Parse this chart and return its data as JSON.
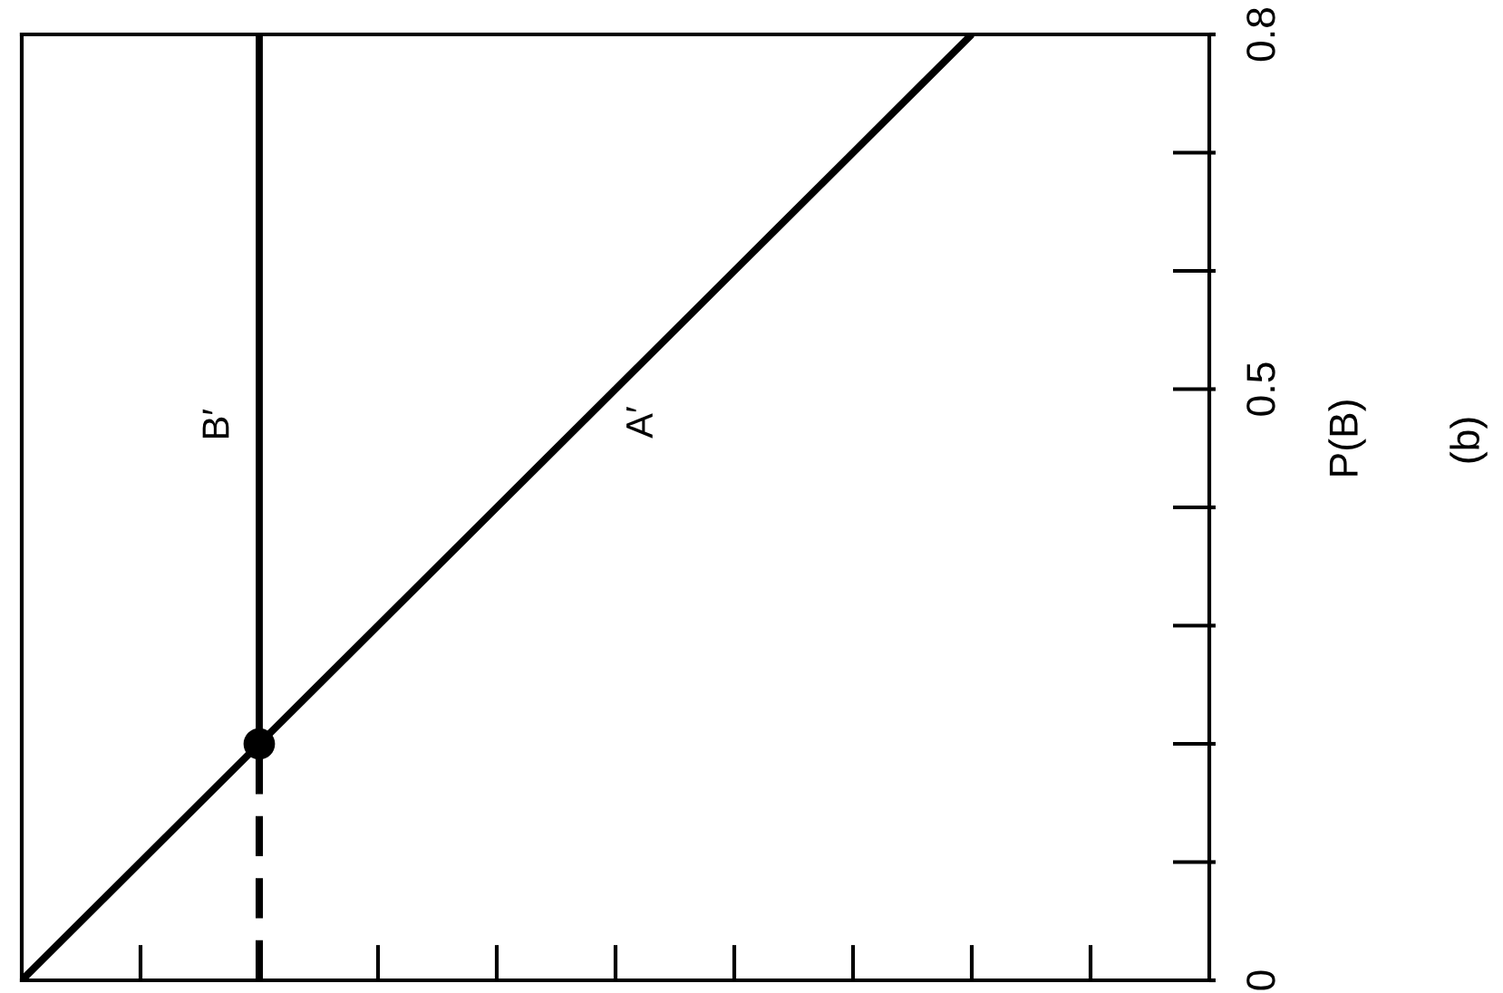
{
  "chart_data": {
    "type": "line",
    "ylabel": "P(B)",
    "tick_labels": "y",
    "categories": [
      null,
      null,
      null,
      null,
      null,
      null,
      null,
      null,
      null,
      null,
      null
    ],
    "ylim": [
      0,
      0.8
    ],
    "yticks": [
      0,
      {
        "value": 0.1,
        "label": null
      },
      {
        "value": 0.2,
        "label": null
      },
      {
        "value": 0.3,
        "label": null
      },
      {
        "value": 0.4,
        "label": null
      },
      0.5,
      {
        "value": 0.6,
        "label": null
      },
      {
        "value": 0.7,
        "label": null
      },
      0.8
    ],
    "series": [
      {
        "name": "A′",
        "color": "#000000",
        "values": [
          0,
          0.1,
          0.2,
          0.3,
          0.4,
          0.5,
          0.6,
          0.7,
          0.8,
          null,
          null
        ]
      },
      {
        "name": "B′",
        "type": "bar",
        "color": "#000000",
        "base": [
          null,
          null,
          0.2,
          null,
          null,
          null,
          null,
          null,
          null,
          null,
          null
        ],
        "values": [
          null,
          null,
          0.6,
          null,
          null,
          null,
          null,
          null,
          null,
          null,
          null
        ]
      },
      {
        "type": "lollipop",
        "color": "#000000",
        "line_style": "dashed",
        "marker": "circle",
        "values": [
          null,
          null,
          0.2,
          null,
          null,
          null,
          null,
          null,
          null,
          null,
          null
        ]
      }
    ],
    "annotations": [
      "(b)"
    ]
  }
}
